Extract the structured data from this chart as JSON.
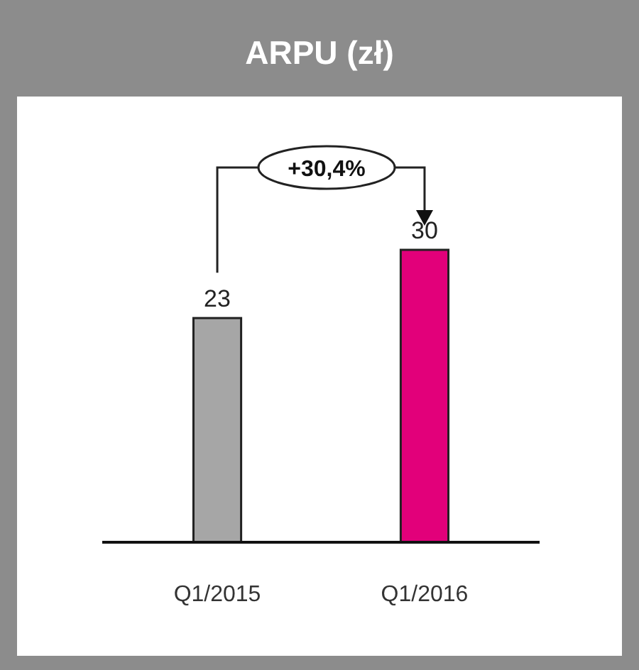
{
  "chart_data": {
    "type": "bar",
    "title": "ARPU (zł)",
    "categories": [
      "Q1/2015",
      "Q1/2016"
    ],
    "values": [
      23,
      30
    ],
    "colors": [
      "#a6a6a6",
      "#e2007a"
    ],
    "data_labels": true,
    "annotations": [
      "+30,4%"
    ]
  }
}
